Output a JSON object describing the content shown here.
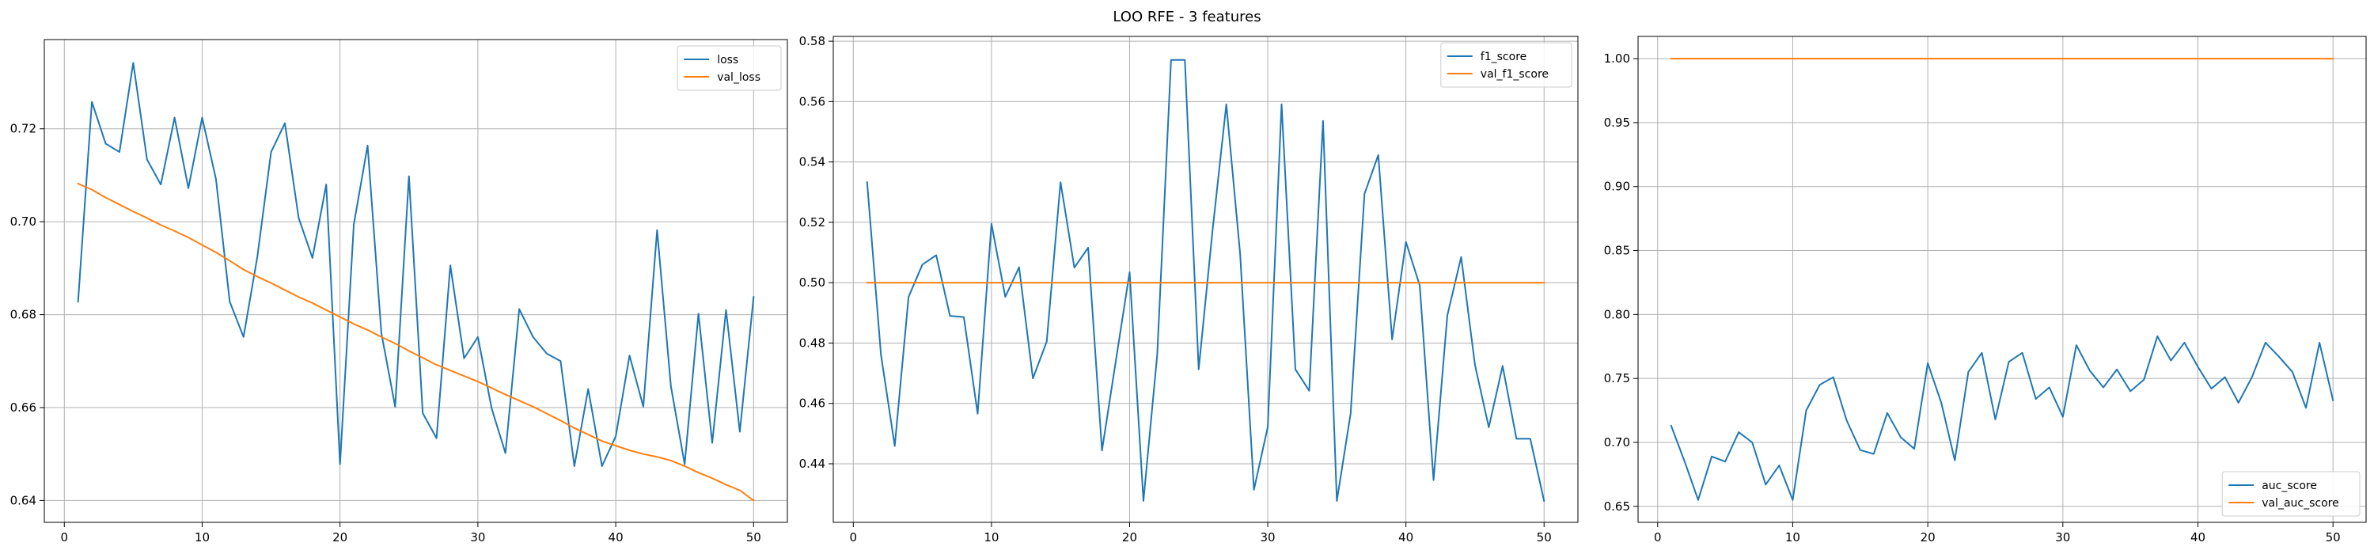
{
  "figure": {
    "title": "LOO RFE - 3 features"
  },
  "colors": {
    "series_a": "#1f77b4",
    "series_b": "#ff7f0e",
    "grid": "#b0b0b0",
    "axes": "#000000",
    "background": "#ffffff"
  },
  "chart_data": [
    {
      "type": "line",
      "title": "",
      "xlabel": "",
      "ylabel": "",
      "xlim": [
        -1.45,
        52.45
      ],
      "ylim": [
        0.6353,
        0.7392
      ],
      "xticks": [
        0,
        10,
        20,
        30,
        40,
        50
      ],
      "yticks": [
        0.64,
        0.66,
        0.68,
        0.7,
        0.72
      ],
      "ytick_labels": [
        "0.64",
        "0.66",
        "0.68",
        "0.70",
        "0.72"
      ],
      "grid": true,
      "legend_position": "top-right",
      "x": [
        1,
        2,
        3,
        4,
        5,
        6,
        7,
        8,
        9,
        10,
        11,
        12,
        13,
        14,
        15,
        16,
        17,
        18,
        19,
        20,
        21,
        22,
        23,
        24,
        25,
        26,
        27,
        28,
        29,
        30,
        31,
        32,
        33,
        34,
        35,
        36,
        37,
        38,
        39,
        40,
        41,
        42,
        43,
        44,
        45,
        46,
        47,
        48,
        49,
        50
      ],
      "series": [
        {
          "name": "loss",
          "color": "#1f77b4",
          "values": [
            0.6828,
            0.7258,
            0.7168,
            0.715,
            0.7342,
            0.7134,
            0.708,
            0.7224,
            0.7072,
            0.7224,
            0.7092,
            0.6828,
            0.6752,
            0.6924,
            0.715,
            0.7212,
            0.7008,
            0.6922,
            0.708,
            0.6478,
            0.6994,
            0.7164,
            0.676,
            0.6602,
            0.7098,
            0.6588,
            0.6534,
            0.6906,
            0.6706,
            0.6752,
            0.6598,
            0.6502,
            0.6812,
            0.6752,
            0.6716,
            0.67,
            0.6474,
            0.664,
            0.6474,
            0.6538,
            0.6712,
            0.6602,
            0.6982,
            0.6646,
            0.6478,
            0.6802,
            0.6524,
            0.681,
            0.6548,
            0.6838
          ]
        },
        {
          "name": "val_loss",
          "color": "#ff7f0e",
          "values": [
            0.7082,
            0.7069,
            0.7052,
            0.7037,
            0.7022,
            0.7008,
            0.6993,
            0.698,
            0.6966,
            0.695,
            0.6934,
            0.6916,
            0.6897,
            0.6882,
            0.6868,
            0.6853,
            0.6838,
            0.6825,
            0.681,
            0.6795,
            0.678,
            0.6767,
            0.6752,
            0.6738,
            0.6722,
            0.6707,
            0.6692,
            0.668,
            0.6668,
            0.6656,
            0.6642,
            0.6628,
            0.6615,
            0.6602,
            0.6587,
            0.6572,
            0.6556,
            0.6542,
            0.6528,
            0.6518,
            0.6508,
            0.65,
            0.6494,
            0.6486,
            0.6474,
            0.646,
            0.6448,
            0.6434,
            0.6422,
            0.64
          ]
        }
      ]
    },
    {
      "type": "line",
      "title": "",
      "xlabel": "",
      "ylabel": "",
      "xlim": [
        -1.45,
        52.45
      ],
      "ylim": [
        0.4206,
        0.5816
      ],
      "xticks": [
        0,
        10,
        20,
        30,
        40,
        50
      ],
      "yticks": [
        0.44,
        0.46,
        0.48,
        0.5,
        0.52,
        0.54,
        0.56,
        0.58
      ],
      "ytick_labels": [
        "0.44",
        "0.46",
        "0.48",
        "0.50",
        "0.52",
        "0.54",
        "0.56",
        "0.58"
      ],
      "grid": true,
      "legend_position": "top-right",
      "x": [
        1,
        2,
        3,
        4,
        5,
        6,
        7,
        8,
        9,
        10,
        11,
        12,
        13,
        14,
        15,
        16,
        17,
        18,
        19,
        20,
        21,
        22,
        23,
        24,
        25,
        26,
        27,
        28,
        29,
        30,
        31,
        32,
        33,
        34,
        35,
        36,
        37,
        38,
        39,
        40,
        41,
        42,
        43,
        44,
        45,
        46,
        47,
        48,
        49,
        50
      ],
      "series": [
        {
          "name": "f1_score",
          "color": "#1f77b4",
          "values": [
            0.5333,
            0.4762,
            0.4459,
            0.4953,
            0.506,
            0.5091,
            0.489,
            0.4886,
            0.4566,
            0.5195,
            0.4953,
            0.5051,
            0.4683,
            0.4805,
            0.5333,
            0.505,
            0.5116,
            0.4444,
            0.474,
            0.5035,
            0.4277,
            0.4762,
            0.5738,
            0.5738,
            0.4713,
            0.5172,
            0.5591,
            0.5095,
            0.4314,
            0.4522,
            0.5591,
            0.4713,
            0.4642,
            0.5536,
            0.4277,
            0.4567,
            0.5294,
            0.5423,
            0.4812,
            0.5135,
            0.4991,
            0.4346,
            0.4892,
            0.5085,
            0.4727,
            0.4521,
            0.4724,
            0.4483,
            0.4483,
            0.4277
          ]
        },
        {
          "name": "val_f1_score",
          "color": "#ff7f0e",
          "values": [
            0.5,
            0.5,
            0.5,
            0.5,
            0.5,
            0.5,
            0.5,
            0.5,
            0.5,
            0.5,
            0.5,
            0.5,
            0.5,
            0.5,
            0.5,
            0.5,
            0.5,
            0.5,
            0.5,
            0.5,
            0.5,
            0.5,
            0.5,
            0.5,
            0.5,
            0.5,
            0.5,
            0.5,
            0.5,
            0.5,
            0.5,
            0.5,
            0.5,
            0.5,
            0.5,
            0.5,
            0.5,
            0.5,
            0.5,
            0.5,
            0.5,
            0.5,
            0.5,
            0.5,
            0.5,
            0.5,
            0.5,
            0.5,
            0.5,
            0.5
          ]
        }
      ]
    },
    {
      "type": "line",
      "title": "",
      "xlabel": "",
      "ylabel": "",
      "xlim": [
        -1.45,
        52.45
      ],
      "ylim": [
        0.6375,
        1.0174
      ],
      "xticks": [
        0,
        10,
        20,
        30,
        40,
        50
      ],
      "yticks": [
        0.65,
        0.7,
        0.75,
        0.8,
        0.85,
        0.9,
        0.95,
        1.0
      ],
      "ytick_labels": [
        "0.65",
        "0.70",
        "0.75",
        "0.80",
        "0.85",
        "0.90",
        "0.95",
        "1.00"
      ],
      "grid": true,
      "legend_position": "bottom-right",
      "x": [
        1,
        2,
        3,
        4,
        5,
        6,
        7,
        8,
        9,
        10,
        11,
        12,
        13,
        14,
        15,
        16,
        17,
        18,
        19,
        20,
        21,
        22,
        23,
        24,
        25,
        26,
        27,
        28,
        29,
        30,
        31,
        32,
        33,
        34,
        35,
        36,
        37,
        38,
        39,
        40,
        41,
        42,
        43,
        44,
        45,
        46,
        47,
        48,
        49,
        50
      ],
      "series": [
        {
          "name": "auc_score",
          "color": "#1f77b4",
          "values": [
            0.713,
            0.685,
            0.655,
            0.689,
            0.685,
            0.708,
            0.7,
            0.667,
            0.682,
            0.655,
            0.725,
            0.745,
            0.751,
            0.717,
            0.694,
            0.691,
            0.723,
            0.704,
            0.695,
            0.762,
            0.731,
            0.686,
            0.755,
            0.77,
            0.718,
            0.763,
            0.77,
            0.734,
            0.743,
            0.72,
            0.776,
            0.756,
            0.743,
            0.757,
            0.74,
            0.749,
            0.783,
            0.764,
            0.778,
            0.759,
            0.742,
            0.751,
            0.731,
            0.751,
            0.778,
            0.767,
            0.755,
            0.727,
            0.778,
            0.733
          ]
        },
        {
          "name": "val_auc_score",
          "color": "#ff7f0e",
          "values": [
            1.0,
            1.0,
            1.0,
            1.0,
            1.0,
            1.0,
            1.0,
            1.0,
            1.0,
            1.0,
            1.0,
            1.0,
            1.0,
            1.0,
            1.0,
            1.0,
            1.0,
            1.0,
            1.0,
            1.0,
            1.0,
            1.0,
            1.0,
            1.0,
            1.0,
            1.0,
            1.0,
            1.0,
            1.0,
            1.0,
            1.0,
            1.0,
            1.0,
            1.0,
            1.0,
            1.0,
            1.0,
            1.0,
            1.0,
            1.0,
            1.0,
            1.0,
            1.0,
            1.0,
            1.0,
            1.0,
            1.0,
            1.0,
            1.0,
            1.0
          ]
        }
      ]
    }
  ]
}
